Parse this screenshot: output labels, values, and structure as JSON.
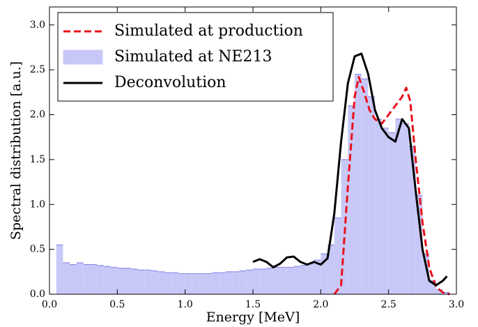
{
  "chart_data": {
    "type": "mixed",
    "xlabel": "Energy [MeV]",
    "ylabel": "Spectral distribution [a.u.]",
    "xlim": [
      0,
      3.0
    ],
    "ylim": [
      0,
      3.2
    ],
    "xticks": [
      {
        "value": 0,
        "label": "0.0"
      },
      0.5,
      {
        "value": 1,
        "label": "1.0"
      },
      1.5,
      {
        "value": 2,
        "label": "2.0"
      },
      2.5,
      {
        "value": 3,
        "label": "3.0"
      }
    ],
    "yticks": [
      {
        "value": 0,
        "label": "0.0"
      },
      0.5,
      {
        "value": 1,
        "label": "1.0"
      },
      1.5,
      {
        "value": 2,
        "label": "2.0"
      },
      2.5,
      {
        "value": 3,
        "label": "3.0"
      }
    ],
    "legend": "upper left",
    "series": [
      {
        "name": "Simulated at production",
        "type": "line",
        "dashed": true,
        "color": "#e8111a",
        "x": [
          2.1,
          2.15,
          2.2,
          2.25,
          2.28,
          2.32,
          2.36,
          2.4,
          2.45,
          2.5,
          2.55,
          2.6,
          2.63,
          2.66,
          2.7,
          2.75,
          2.8,
          2.85,
          2.9,
          2.95
        ],
        "values": [
          0,
          0.1,
          1.2,
          2.2,
          2.42,
          2.25,
          2.05,
          1.95,
          1.9,
          2.0,
          2.1,
          2.2,
          2.3,
          2.15,
          1.5,
          0.8,
          0.3,
          0.08,
          0.02,
          0
        ]
      },
      {
        "name": "Simulated at NE213",
        "type": "histogram",
        "color": "#c8c8f8",
        "edgecolor": "#7f7fe6",
        "bins": [
          0.05,
          0.1,
          0.15,
          0.2,
          0.25,
          0.3,
          0.35,
          0.4,
          0.45,
          0.5,
          0.55,
          0.6,
          0.65,
          0.7,
          0.75,
          0.8,
          0.85,
          0.9,
          0.95,
          1.0,
          1.05,
          1.1,
          1.15,
          1.2,
          1.25,
          1.3,
          1.35,
          1.4,
          1.45,
          1.5,
          1.55,
          1.6,
          1.65,
          1.7,
          1.75,
          1.8,
          1.85,
          1.9,
          1.95,
          2.0,
          2.05,
          2.1,
          2.15,
          2.2,
          2.25,
          2.3,
          2.35,
          2.4,
          2.45,
          2.5,
          2.55,
          2.6,
          2.65,
          2.7,
          2.75,
          2.8,
          2.85,
          2.9,
          2.95
        ],
        "values": [
          0.55,
          0.35,
          0.33,
          0.35,
          0.33,
          0.33,
          0.32,
          0.31,
          0.3,
          0.29,
          0.29,
          0.28,
          0.27,
          0.27,
          0.26,
          0.25,
          0.24,
          0.24,
          0.23,
          0.23,
          0.23,
          0.23,
          0.23,
          0.24,
          0.24,
          0.25,
          0.25,
          0.26,
          0.27,
          0.28,
          0.28,
          0.29,
          0.3,
          0.3,
          0.3,
          0.31,
          0.32,
          0.34,
          0.38,
          0.45,
          0.55,
          0.85,
          1.5,
          2.1,
          2.45,
          2.4,
          2.2,
          1.95,
          1.85,
          1.8,
          1.95,
          1.9,
          1.65,
          1.1,
          0.45,
          0.15,
          0.05,
          0.02
        ]
      },
      {
        "name": "Deconvolution",
        "type": "line",
        "dashed": false,
        "color": "#000000",
        "x": [
          1.5,
          1.55,
          1.6,
          1.65,
          1.7,
          1.75,
          1.8,
          1.85,
          1.9,
          1.95,
          2.0,
          2.05,
          2.1,
          2.15,
          2.2,
          2.25,
          2.3,
          2.35,
          2.4,
          2.45,
          2.5,
          2.55,
          2.6,
          2.65,
          2.7,
          2.75,
          2.8,
          2.85,
          2.9,
          2.93
        ],
        "values": [
          0.36,
          0.39,
          0.36,
          0.3,
          0.34,
          0.41,
          0.42,
          0.36,
          0.33,
          0.36,
          0.33,
          0.4,
          0.9,
          1.7,
          2.35,
          2.65,
          2.68,
          2.45,
          2.05,
          1.85,
          1.75,
          1.7,
          1.95,
          1.85,
          1.15,
          0.5,
          0.15,
          0.1,
          0.15,
          0.2
        ]
      }
    ]
  }
}
